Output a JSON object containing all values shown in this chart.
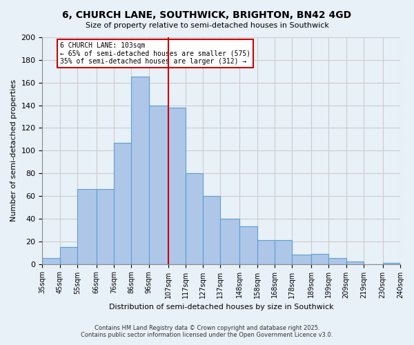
{
  "title": "6, CHURCH LANE, SOUTHWICK, BRIGHTON, BN42 4GD",
  "subtitle": "Size of property relative to semi-detached houses in Southwick",
  "xlabel": "Distribution of semi-detached houses by size in Southwick",
  "ylabel": "Number of semi-detached properties",
  "footnote1": "Contains HM Land Registry data © Crown copyright and database right 2025.",
  "footnote2": "Contains public sector information licensed under the Open Government Licence v3.0.",
  "bins": [
    35,
    45,
    55,
    66,
    76,
    86,
    96,
    107,
    117,
    127,
    137,
    148,
    158,
    168,
    178,
    189,
    199,
    209,
    219,
    230,
    240
  ],
  "bin_labels": [
    "35sqm",
    "45sqm",
    "55sqm",
    "66sqm",
    "76sqm",
    "86sqm",
    "96sqm",
    "107sqm",
    "117sqm",
    "127sqm",
    "137sqm",
    "148sqm",
    "158sqm",
    "168sqm",
    "178sqm",
    "189sqm",
    "199sqm",
    "209sqm",
    "219sqm",
    "230sqm",
    "240sqm"
  ],
  "counts": [
    5,
    15,
    66,
    66,
    107,
    165,
    140,
    138,
    80,
    60,
    40,
    33,
    21,
    21,
    8,
    9,
    5,
    2,
    0,
    1
  ],
  "bar_color": "#aec6e8",
  "bar_edge_color": "#5a9fd4",
  "grid_color": "#cccccc",
  "bg_color": "#e8f0f8",
  "vline_x": 107,
  "vline_color": "#cc0000",
  "annotation_title": "6 CHURCH LANE: 103sqm",
  "annotation_line1": "← 65% of semi-detached houses are smaller (575)",
  "annotation_line2": "35% of semi-detached houses are larger (312) →",
  "annotation_box_color": "#cc0000",
  "ylim": [
    0,
    200
  ],
  "yticks": [
    0,
    20,
    40,
    60,
    80,
    100,
    120,
    140,
    160,
    180,
    200
  ]
}
